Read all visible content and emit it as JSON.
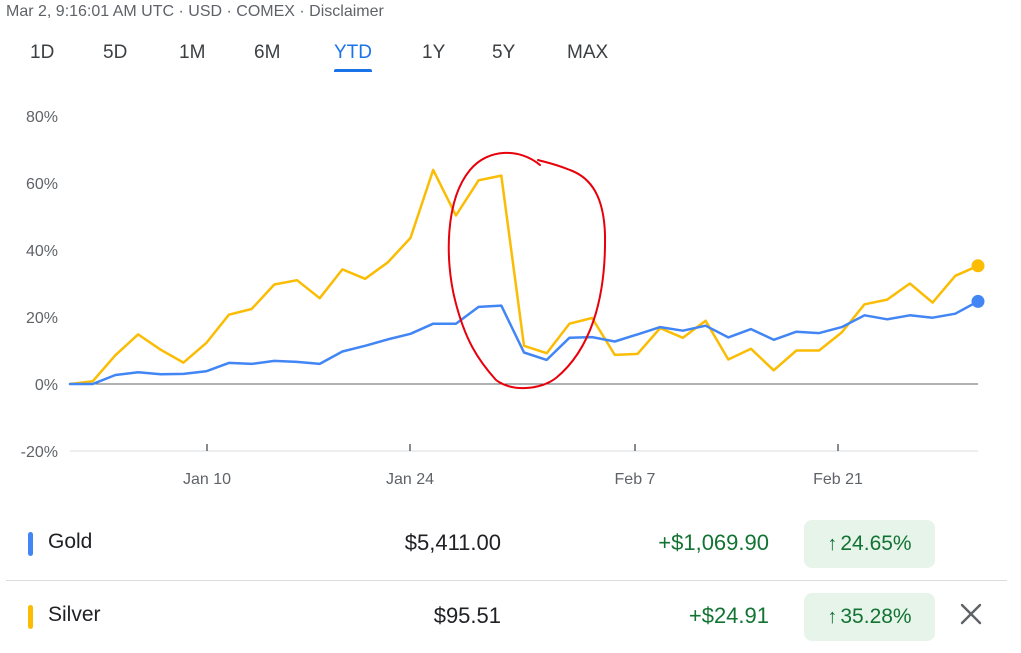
{
  "header": {
    "text": "Mar 2, 9:16:01 AM UTC · USD · COMEX · Disclaimer"
  },
  "tabs": [
    {
      "label": "1D"
    },
    {
      "label": "5D"
    },
    {
      "label": "1M"
    },
    {
      "label": "6M"
    },
    {
      "label": "YTD",
      "active": true
    },
    {
      "label": "1Y"
    },
    {
      "label": "5Y"
    },
    {
      "label": "MAX"
    }
  ],
  "colors": {
    "gold": "#4285f4",
    "silver": "#fbbc04",
    "annotation": "#e8000b",
    "positive": "#137333",
    "positive_bg": "#e6f4ea"
  },
  "chart_data": {
    "type": "line",
    "x_ticks": [
      "Jan 10",
      "Jan 24",
      "Feb 7",
      "Feb 21"
    ],
    "y_ticks": [
      "80%",
      "60%",
      "40%",
      "20%",
      "0%",
      "-20%"
    ],
    "ylim": [
      -20,
      80
    ],
    "grid": false,
    "series": [
      {
        "name": "Gold",
        "values": [
          0,
          0,
          2.7,
          3.5,
          2.9,
          3,
          3.8,
          6.3,
          6,
          6.9,
          6.6,
          6,
          9.7,
          11.4,
          13.3,
          15,
          18,
          18,
          23,
          23.4,
          9.4,
          7.2,
          13.8,
          14,
          12.7,
          14.8,
          17,
          15.9,
          17.4,
          13.9,
          16.4,
          13.2,
          15.6,
          15.2,
          17,
          20.5,
          19.3,
          20.5,
          19.8,
          21,
          24.65
        ]
      },
      {
        "name": "Silver",
        "values": [
          0,
          0.8,
          8.6,
          14.8,
          10.2,
          6.4,
          12.2,
          20.7,
          22.4,
          29.7,
          31,
          25.6,
          34.2,
          31.4,
          36.3,
          43.6,
          63.9,
          50.3,
          60.8,
          62.2,
          11.4,
          9.2,
          18,
          19.7,
          8.7,
          9,
          16.7,
          13.8,
          18.9,
          7.3,
          10.5,
          4.1,
          10,
          10,
          15.4,
          23.8,
          25.2,
          30,
          24.3,
          32.3,
          35.28
        ]
      }
    ]
  },
  "rows": [
    {
      "name": "Gold",
      "price": "$5,411.00",
      "change": "+$1,069.90",
      "arrow": "↑",
      "pct": "24.65%"
    },
    {
      "name": "Silver",
      "price": "$95.51",
      "change": "+$24.91",
      "arrow": "↑",
      "pct": "35.28%"
    }
  ],
  "icons": {
    "close": "close-icon",
    "arrow": "arrow-up-icon"
  }
}
